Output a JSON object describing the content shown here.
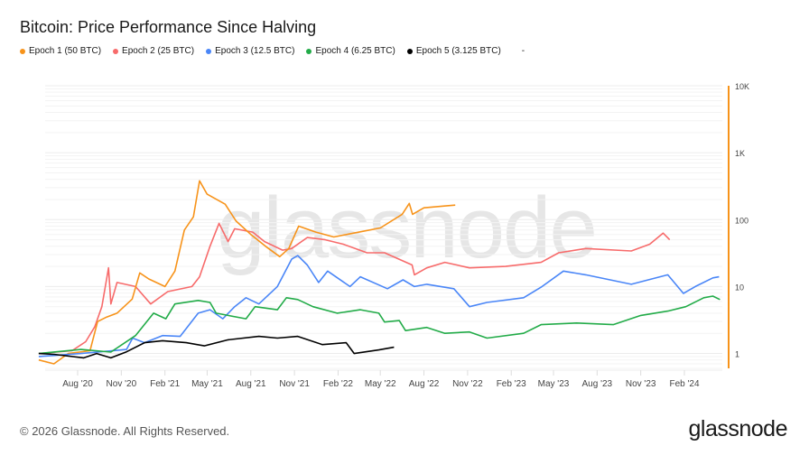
{
  "title": "Bitcoin: Price Performance Since Halving",
  "legend_trailing": "-",
  "footer": "© 2026 Glassnode. All Rights Reserved.",
  "logo": "glassnode",
  "watermark": "glassnode",
  "axis_color": "#f7931a",
  "chart_data": {
    "type": "line",
    "title": "Bitcoin: Price Performance Since Halving",
    "xlabel": "",
    "ylabel": "",
    "yscale": "log",
    "ylim": [
      0.6,
      10000
    ],
    "xlim": [
      "2020-05-11",
      "2024-04-30"
    ],
    "y_axis_position": "right",
    "grid": true,
    "legend_position": "top-left",
    "x_ticks": [
      {
        "date": "2020-08-01",
        "label": "Aug '20"
      },
      {
        "date": "2020-11-01",
        "label": "Nov '20"
      },
      {
        "date": "2021-02-01",
        "label": "Feb '21"
      },
      {
        "date": "2021-05-01",
        "label": "May '21"
      },
      {
        "date": "2021-08-01",
        "label": "Aug '21"
      },
      {
        "date": "2021-11-01",
        "label": "Nov '21"
      },
      {
        "date": "2022-02-01",
        "label": "Feb '22"
      },
      {
        "date": "2022-05-01",
        "label": "May '22"
      },
      {
        "date": "2022-08-01",
        "label": "Aug '22"
      },
      {
        "date": "2022-11-01",
        "label": "Nov '22"
      },
      {
        "date": "2023-02-01",
        "label": "Feb '23"
      },
      {
        "date": "2023-05-01",
        "label": "May '23"
      },
      {
        "date": "2023-08-01",
        "label": "Aug '23"
      },
      {
        "date": "2023-11-01",
        "label": "Nov '23"
      },
      {
        "date": "2024-02-01",
        "label": "Feb '24"
      }
    ],
    "y_ticks": [
      {
        "value": 1,
        "label": "1"
      },
      {
        "value": 10,
        "label": "10"
      },
      {
        "value": 100,
        "label": "100"
      },
      {
        "value": 1000,
        "label": "1K"
      },
      {
        "value": 10000,
        "label": "10K"
      }
    ],
    "series": [
      {
        "name": "Epoch 1 (50 BTC)",
        "color": "#f7931a",
        "points": [
          [
            "2020-05-11",
            0.8
          ],
          [
            "2020-06-12",
            0.7
          ],
          [
            "2020-07-12",
            1.0
          ],
          [
            "2020-08-27",
            1.1
          ],
          [
            "2020-09-12",
            3.0
          ],
          [
            "2020-10-01",
            3.5
          ],
          [
            "2020-10-23",
            4.0
          ],
          [
            "2020-11-24",
            6.5
          ],
          [
            "2020-12-10",
            16
          ],
          [
            "2020-12-29",
            13
          ],
          [
            "2021-02-01",
            10
          ],
          [
            "2021-02-22",
            17
          ],
          [
            "2021-03-14",
            70
          ],
          [
            "2021-04-02",
            110
          ],
          [
            "2021-04-15",
            380
          ],
          [
            "2021-05-01",
            240
          ],
          [
            "2021-06-08",
            170
          ],
          [
            "2021-07-01",
            95
          ],
          [
            "2021-08-01",
            60
          ],
          [
            "2021-09-01",
            40
          ],
          [
            "2021-10-01",
            28
          ],
          [
            "2021-10-20",
            37
          ],
          [
            "2021-11-10",
            80
          ],
          [
            "2021-12-16",
            65
          ],
          [
            "2022-01-23",
            55
          ],
          [
            "2022-03-01",
            62
          ],
          [
            "2022-05-01",
            75
          ],
          [
            "2022-06-16",
            120
          ],
          [
            "2022-07-01",
            175
          ],
          [
            "2022-07-08",
            120
          ],
          [
            "2022-08-01",
            150
          ],
          [
            "2022-09-16",
            160
          ],
          [
            "2022-10-06",
            165
          ]
        ]
      },
      {
        "name": "Epoch 2 (25 BTC)",
        "color": "#f76b6b",
        "points": [
          [
            "2020-05-11",
            1.0
          ],
          [
            "2020-07-20",
            1.1
          ],
          [
            "2020-08-18",
            1.5
          ],
          [
            "2020-09-06",
            2.5
          ],
          [
            "2020-09-21",
            5
          ],
          [
            "2020-10-05",
            19
          ],
          [
            "2020-10-10",
            5.5
          ],
          [
            "2020-10-23",
            11.5
          ],
          [
            "2020-12-01",
            10
          ],
          [
            "2021-01-02",
            5.5
          ],
          [
            "2021-02-07",
            8.4
          ],
          [
            "2021-03-30",
            10
          ],
          [
            "2021-04-15",
            14
          ],
          [
            "2021-05-07",
            40
          ],
          [
            "2021-05-26",
            88
          ],
          [
            "2021-06-14",
            47
          ],
          [
            "2021-06-28",
            73
          ],
          [
            "2021-08-05",
            65
          ],
          [
            "2021-08-30",
            47
          ],
          [
            "2021-10-07",
            35
          ],
          [
            "2021-10-26",
            37
          ],
          [
            "2021-11-28",
            54
          ],
          [
            "2022-01-05",
            50
          ],
          [
            "2022-02-12",
            43
          ],
          [
            "2022-04-03",
            32
          ],
          [
            "2022-05-10",
            32
          ],
          [
            "2022-07-07",
            21
          ],
          [
            "2022-07-12",
            15
          ],
          [
            "2022-08-07",
            19
          ],
          [
            "2022-09-14",
            23
          ],
          [
            "2022-11-05",
            19
          ],
          [
            "2023-01-20",
            20
          ],
          [
            "2023-04-05",
            23
          ],
          [
            "2023-05-12",
            32
          ],
          [
            "2023-07-08",
            37
          ],
          [
            "2023-10-12",
            34
          ],
          [
            "2023-11-20",
            43
          ],
          [
            "2023-12-18",
            63
          ],
          [
            "2024-01-01",
            50
          ]
        ]
      },
      {
        "name": "Epoch 3 (12.5 BTC)",
        "color": "#4a86f7",
        "points": [
          [
            "2020-05-11",
            0.9
          ],
          [
            "2020-08-08",
            1.0
          ],
          [
            "2020-11-12",
            1.15
          ],
          [
            "2020-11-25",
            1.7
          ],
          [
            "2020-12-20",
            1.45
          ],
          [
            "2021-01-27",
            1.85
          ],
          [
            "2021-03-05",
            1.8
          ],
          [
            "2021-04-12",
            4
          ],
          [
            "2021-05-07",
            4.5
          ],
          [
            "2021-06-03",
            3.3
          ],
          [
            "2021-06-28",
            5
          ],
          [
            "2021-07-22",
            6.8
          ],
          [
            "2021-08-18",
            5.5
          ],
          [
            "2021-09-26",
            10
          ],
          [
            "2021-10-26",
            25.6
          ],
          [
            "2021-11-08",
            29
          ],
          [
            "2021-11-28",
            21
          ],
          [
            "2021-12-22",
            11.5
          ],
          [
            "2022-01-10",
            17
          ],
          [
            "2022-02-26",
            10
          ],
          [
            "2022-03-20",
            14
          ],
          [
            "2022-05-16",
            9.3
          ],
          [
            "2022-06-18",
            12.6
          ],
          [
            "2022-07-12",
            10
          ],
          [
            "2022-08-07",
            10.8
          ],
          [
            "2022-10-03",
            9.3
          ],
          [
            "2022-11-05",
            5
          ],
          [
            "2022-12-12",
            5.8
          ],
          [
            "2023-02-27",
            6.8
          ],
          [
            "2023-04-05",
            9.8
          ],
          [
            "2023-05-22",
            17
          ],
          [
            "2023-07-08",
            15
          ],
          [
            "2023-10-12",
            10.8
          ],
          [
            "2023-12-28",
            15
          ],
          [
            "2024-01-30",
            7.9
          ],
          [
            "2024-02-24",
            10
          ],
          [
            "2024-04-01",
            13.5
          ],
          [
            "2024-04-14",
            14
          ]
        ]
      },
      {
        "name": "Epoch 4 (6.25 BTC)",
        "color": "#22ab48",
        "points": [
          [
            "2020-05-11",
            1.0
          ],
          [
            "2020-08-08",
            1.15
          ],
          [
            "2020-10-10",
            1.05
          ],
          [
            "2020-12-01",
            1.85
          ],
          [
            "2021-01-08",
            4
          ],
          [
            "2021-02-03",
            3.3
          ],
          [
            "2021-02-22",
            5.5
          ],
          [
            "2021-04-12",
            6.2
          ],
          [
            "2021-05-07",
            5.8
          ],
          [
            "2021-05-20",
            4
          ],
          [
            "2021-06-14",
            3.7
          ],
          [
            "2021-07-22",
            3.3
          ],
          [
            "2021-08-10",
            5
          ],
          [
            "2021-09-26",
            4.5
          ],
          [
            "2021-10-15",
            6.8
          ],
          [
            "2021-11-08",
            6.4
          ],
          [
            "2021-12-10",
            5
          ],
          [
            "2022-01-30",
            4
          ],
          [
            "2022-03-20",
            4.5
          ],
          [
            "2022-04-28",
            4
          ],
          [
            "2022-05-10",
            2.95
          ],
          [
            "2022-06-10",
            3.1
          ],
          [
            "2022-06-23",
            2.2
          ],
          [
            "2022-08-07",
            2.45
          ],
          [
            "2022-09-14",
            2
          ],
          [
            "2022-11-05",
            2.1
          ],
          [
            "2022-12-12",
            1.7
          ],
          [
            "2023-02-27",
            2
          ],
          [
            "2023-04-05",
            2.7
          ],
          [
            "2023-06-19",
            2.85
          ],
          [
            "2023-09-04",
            2.7
          ],
          [
            "2023-11-01",
            3.7
          ],
          [
            "2023-12-28",
            4.3
          ],
          [
            "2024-02-04",
            5
          ],
          [
            "2024-03-13",
            6.8
          ],
          [
            "2024-04-01",
            7.2
          ],
          [
            "2024-04-16",
            6.4
          ]
        ]
      },
      {
        "name": "Epoch 5 (3.125 BTC)",
        "color": "#000000",
        "points": [
          [
            "2020-05-11",
            1.0
          ],
          [
            "2020-06-12",
            0.97
          ],
          [
            "2020-08-14",
            0.86
          ],
          [
            "2020-09-10",
            1.0
          ],
          [
            "2020-10-10",
            0.86
          ],
          [
            "2020-11-12",
            1.06
          ],
          [
            "2020-12-20",
            1.45
          ],
          [
            "2021-01-27",
            1.55
          ],
          [
            "2021-03-18",
            1.45
          ],
          [
            "2021-04-25",
            1.3
          ],
          [
            "2021-06-14",
            1.6
          ],
          [
            "2021-08-18",
            1.8
          ],
          [
            "2021-09-26",
            1.7
          ],
          [
            "2021-11-08",
            1.8
          ],
          [
            "2021-12-30",
            1.36
          ],
          [
            "2022-02-18",
            1.45
          ],
          [
            "2022-03-07",
            1.0
          ],
          [
            "2022-04-28",
            1.13
          ],
          [
            "2022-05-30",
            1.24
          ]
        ]
      }
    ]
  }
}
